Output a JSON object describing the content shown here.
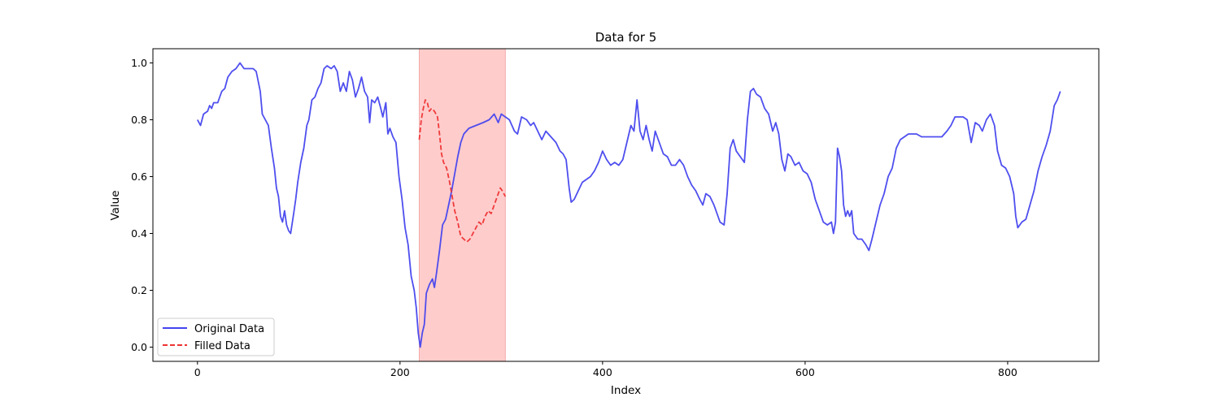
{
  "chart_data": {
    "type": "line",
    "title": "Data for 5",
    "xlabel": "Index",
    "ylabel": "Value",
    "xlim": [
      -44,
      890
    ],
    "ylim": [
      -0.05,
      1.05
    ],
    "xticks": [
      0,
      200,
      400,
      600,
      800
    ],
    "yticks": [
      0.0,
      0.2,
      0.4,
      0.6,
      0.8,
      1.0
    ],
    "xtick_labels": [
      "0",
      "200",
      "400",
      "600",
      "800"
    ],
    "ytick_labels": [
      "0.0",
      "0.2",
      "0.4",
      "0.6",
      "0.8",
      "1.0"
    ],
    "legend_position": "lower-left",
    "grid": false,
    "highlight_span": {
      "x0": 219,
      "x1": 304,
      "color": "#ffcccc"
    },
    "series": [
      {
        "name": "Original Data",
        "color": "#4444ee",
        "style": "solid",
        "points": [
          [
            0,
            0.8
          ],
          [
            3,
            0.78
          ],
          [
            6,
            0.82
          ],
          [
            10,
            0.83
          ],
          [
            12,
            0.85
          ],
          [
            14,
            0.84
          ],
          [
            16,
            0.86
          ],
          [
            20,
            0.86
          ],
          [
            24,
            0.9
          ],
          [
            27,
            0.91
          ],
          [
            30,
            0.95
          ],
          [
            34,
            0.97
          ],
          [
            38,
            0.98
          ],
          [
            42,
            1.0
          ],
          [
            46,
            0.98
          ],
          [
            50,
            0.98
          ],
          [
            55,
            0.98
          ],
          [
            58,
            0.97
          ],
          [
            62,
            0.9
          ],
          [
            64,
            0.82
          ],
          [
            67,
            0.8
          ],
          [
            70,
            0.78
          ],
          [
            73,
            0.7
          ],
          [
            76,
            0.63
          ],
          [
            78,
            0.56
          ],
          [
            80,
            0.53
          ],
          [
            82,
            0.46
          ],
          [
            84,
            0.44
          ],
          [
            86,
            0.48
          ],
          [
            88,
            0.43
          ],
          [
            90,
            0.41
          ],
          [
            92,
            0.4
          ],
          [
            95,
            0.47
          ],
          [
            97,
            0.52
          ],
          [
            99,
            0.58
          ],
          [
            102,
            0.65
          ],
          [
            105,
            0.7
          ],
          [
            108,
            0.78
          ],
          [
            110,
            0.8
          ],
          [
            113,
            0.87
          ],
          [
            116,
            0.88
          ],
          [
            119,
            0.91
          ],
          [
            122,
            0.93
          ],
          [
            125,
            0.98
          ],
          [
            128,
            0.99
          ],
          [
            132,
            0.98
          ],
          [
            135,
            0.99
          ],
          [
            138,
            0.97
          ],
          [
            141,
            0.9
          ],
          [
            144,
            0.93
          ],
          [
            147,
            0.9
          ],
          [
            150,
            0.97
          ],
          [
            153,
            0.94
          ],
          [
            156,
            0.88
          ],
          [
            159,
            0.91
          ],
          [
            162,
            0.95
          ],
          [
            165,
            0.9
          ],
          [
            168,
            0.88
          ],
          [
            170,
            0.79
          ],
          [
            172,
            0.87
          ],
          [
            175,
            0.86
          ],
          [
            178,
            0.88
          ],
          [
            181,
            0.84
          ],
          [
            183,
            0.81
          ],
          [
            186,
            0.86
          ],
          [
            188,
            0.75
          ],
          [
            190,
            0.77
          ],
          [
            193,
            0.74
          ],
          [
            196,
            0.72
          ],
          [
            199,
            0.6
          ],
          [
            202,
            0.52
          ],
          [
            205,
            0.42
          ],
          [
            208,
            0.36
          ],
          [
            211,
            0.25
          ],
          [
            214,
            0.2
          ],
          [
            216,
            0.14
          ],
          [
            218,
            0.05
          ],
          [
            220,
            0.0
          ],
          [
            222,
            0.05
          ],
          [
            224,
            0.08
          ],
          [
            226,
            0.19
          ],
          [
            229,
            0.22
          ],
          [
            232,
            0.24
          ],
          [
            234,
            0.21
          ],
          [
            236,
            0.26
          ],
          [
            239,
            0.34
          ],
          [
            242,
            0.43
          ],
          [
            245,
            0.45
          ],
          [
            248,
            0.5
          ],
          [
            251,
            0.55
          ],
          [
            254,
            0.61
          ],
          [
            257,
            0.67
          ],
          [
            260,
            0.72
          ],
          [
            263,
            0.75
          ],
          [
            268,
            0.77
          ],
          [
            275,
            0.78
          ],
          [
            282,
            0.79
          ],
          [
            288,
            0.8
          ],
          [
            293,
            0.82
          ],
          [
            297,
            0.79
          ],
          [
            300,
            0.82
          ],
          [
            304,
            0.81
          ],
          [
            308,
            0.8
          ],
          [
            313,
            0.76
          ],
          [
            316,
            0.75
          ],
          [
            320,
            0.81
          ],
          [
            325,
            0.8
          ],
          [
            329,
            0.78
          ],
          [
            332,
            0.79
          ],
          [
            336,
            0.76
          ],
          [
            340,
            0.73
          ],
          [
            344,
            0.76
          ],
          [
            349,
            0.74
          ],
          [
            354,
            0.72
          ],
          [
            358,
            0.69
          ],
          [
            361,
            0.68
          ],
          [
            364,
            0.66
          ],
          [
            367,
            0.56
          ],
          [
            369,
            0.51
          ],
          [
            372,
            0.52
          ],
          [
            376,
            0.55
          ],
          [
            380,
            0.58
          ],
          [
            384,
            0.59
          ],
          [
            388,
            0.6
          ],
          [
            392,
            0.62
          ],
          [
            396,
            0.65
          ],
          [
            400,
            0.69
          ],
          [
            404,
            0.66
          ],
          [
            408,
            0.64
          ],
          [
            412,
            0.65
          ],
          [
            416,
            0.64
          ],
          [
            420,
            0.66
          ],
          [
            424,
            0.72
          ],
          [
            428,
            0.78
          ],
          [
            431,
            0.76
          ],
          [
            434,
            0.87
          ],
          [
            437,
            0.76
          ],
          [
            440,
            0.73
          ],
          [
            443,
            0.78
          ],
          [
            446,
            0.73
          ],
          [
            449,
            0.69
          ],
          [
            452,
            0.76
          ],
          [
            456,
            0.72
          ],
          [
            460,
            0.68
          ],
          [
            464,
            0.67
          ],
          [
            468,
            0.64
          ],
          [
            472,
            0.64
          ],
          [
            476,
            0.66
          ],
          [
            480,
            0.64
          ],
          [
            484,
            0.6
          ],
          [
            488,
            0.57
          ],
          [
            492,
            0.55
          ],
          [
            496,
            0.52
          ],
          [
            499,
            0.5
          ],
          [
            502,
            0.54
          ],
          [
            506,
            0.53
          ],
          [
            510,
            0.5
          ],
          [
            513,
            0.47
          ],
          [
            516,
            0.44
          ],
          [
            520,
            0.43
          ],
          [
            523,
            0.54
          ],
          [
            526,
            0.7
          ],
          [
            529,
            0.73
          ],
          [
            532,
            0.69
          ],
          [
            536,
            0.67
          ],
          [
            540,
            0.65
          ],
          [
            543,
            0.8
          ],
          [
            546,
            0.9
          ],
          [
            549,
            0.91
          ],
          [
            552,
            0.89
          ],
          [
            556,
            0.88
          ],
          [
            560,
            0.84
          ],
          [
            564,
            0.82
          ],
          [
            568,
            0.76
          ],
          [
            571,
            0.79
          ],
          [
            574,
            0.75
          ],
          [
            577,
            0.66
          ],
          [
            580,
            0.62
          ],
          [
            583,
            0.68
          ],
          [
            586,
            0.67
          ],
          [
            590,
            0.64
          ],
          [
            594,
            0.65
          ],
          [
            598,
            0.62
          ],
          [
            602,
            0.61
          ],
          [
            606,
            0.58
          ],
          [
            610,
            0.52
          ],
          [
            614,
            0.48
          ],
          [
            618,
            0.44
          ],
          [
            622,
            0.43
          ],
          [
            626,
            0.44
          ],
          [
            628,
            0.4
          ],
          [
            630,
            0.44
          ],
          [
            632,
            0.7
          ],
          [
            634,
            0.67
          ],
          [
            636,
            0.62
          ],
          [
            638,
            0.5
          ],
          [
            640,
            0.46
          ],
          [
            642,
            0.48
          ],
          [
            644,
            0.46
          ],
          [
            646,
            0.48
          ],
          [
            648,
            0.4
          ],
          [
            652,
            0.38
          ],
          [
            656,
            0.38
          ],
          [
            660,
            0.36
          ],
          [
            663,
            0.34
          ],
          [
            666,
            0.38
          ],
          [
            670,
            0.44
          ],
          [
            674,
            0.5
          ],
          [
            678,
            0.54
          ],
          [
            682,
            0.6
          ],
          [
            686,
            0.63
          ],
          [
            690,
            0.7
          ],
          [
            694,
            0.73
          ],
          [
            698,
            0.74
          ],
          [
            702,
            0.75
          ],
          [
            706,
            0.75
          ],
          [
            710,
            0.75
          ],
          [
            715,
            0.74
          ],
          [
            720,
            0.74
          ],
          [
            725,
            0.74
          ],
          [
            730,
            0.74
          ],
          [
            735,
            0.74
          ],
          [
            740,
            0.76
          ],
          [
            744,
            0.78
          ],
          [
            748,
            0.81
          ],
          [
            752,
            0.81
          ],
          [
            756,
            0.81
          ],
          [
            760,
            0.8
          ],
          [
            764,
            0.72
          ],
          [
            768,
            0.79
          ],
          [
            772,
            0.78
          ],
          [
            775,
            0.76
          ],
          [
            779,
            0.8
          ],
          [
            783,
            0.82
          ],
          [
            787,
            0.78
          ],
          [
            790,
            0.69
          ],
          [
            794,
            0.64
          ],
          [
            798,
            0.63
          ],
          [
            802,
            0.6
          ],
          [
            806,
            0.54
          ],
          [
            808,
            0.46
          ],
          [
            810,
            0.42
          ],
          [
            814,
            0.44
          ],
          [
            818,
            0.45
          ],
          [
            822,
            0.5
          ],
          [
            826,
            0.55
          ],
          [
            830,
            0.62
          ],
          [
            834,
            0.67
          ],
          [
            838,
            0.71
          ],
          [
            842,
            0.76
          ],
          [
            846,
            0.85
          ],
          [
            849,
            0.87
          ],
          [
            852,
            0.9
          ]
        ]
      },
      {
        "name": "Filled Data",
        "color": "#ee3333",
        "style": "dashed",
        "points": [
          [
            219,
            0.73
          ],
          [
            221,
            0.8
          ],
          [
            223,
            0.84
          ],
          [
            225,
            0.87
          ],
          [
            227,
            0.86
          ],
          [
            229,
            0.83
          ],
          [
            231,
            0.84
          ],
          [
            234,
            0.83
          ],
          [
            237,
            0.81
          ],
          [
            239,
            0.75
          ],
          [
            241,
            0.68
          ],
          [
            243,
            0.65
          ],
          [
            246,
            0.63
          ],
          [
            249,
            0.58
          ],
          [
            252,
            0.52
          ],
          [
            254,
            0.48
          ],
          [
            257,
            0.44
          ],
          [
            260,
            0.39
          ],
          [
            263,
            0.38
          ],
          [
            266,
            0.37
          ],
          [
            269,
            0.38
          ],
          [
            272,
            0.4
          ],
          [
            275,
            0.42
          ],
          [
            278,
            0.44
          ],
          [
            281,
            0.43
          ],
          [
            284,
            0.46
          ],
          [
            287,
            0.48
          ],
          [
            290,
            0.47
          ],
          [
            293,
            0.5
          ],
          [
            296,
            0.53
          ],
          [
            299,
            0.56
          ],
          [
            301,
            0.55
          ],
          [
            304,
            0.53
          ]
        ]
      }
    ]
  }
}
